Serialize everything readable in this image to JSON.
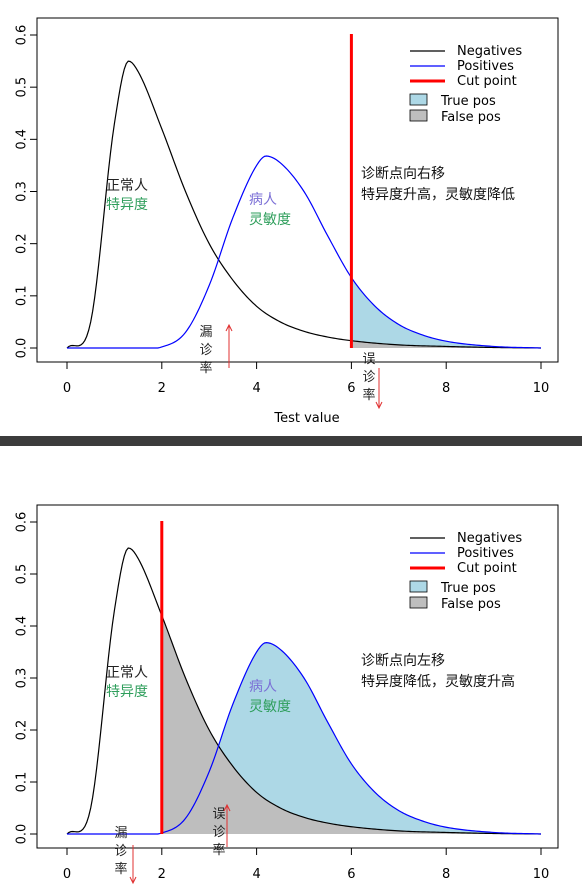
{
  "panels": [
    {
      "xlabel": "Test value",
      "legend": {
        "lines": [
          {
            "label": "Negatives",
            "color": "#000000"
          },
          {
            "label": "Positives",
            "color": "#0000ff"
          },
          {
            "label": "Cut point",
            "color": "#ff0000"
          }
        ],
        "fills": [
          {
            "label": "True pos",
            "color": "#add8e6"
          },
          {
            "label": "False pos",
            "color": "#bebebe"
          }
        ]
      },
      "annotations": {
        "normal": [
          "正常人",
          "特异度"
        ],
        "sick": [
          "病人",
          "灵敏度"
        ],
        "note": [
          "诊断点向右移",
          "特异度升高，灵敏度降低"
        ],
        "miss": [
          "漏",
          "诊",
          "率"
        ],
        "misdiag": [
          "误",
          "诊",
          "率"
        ]
      }
    },
    {
      "xlabel": "",
      "legend": {
        "lines": [
          {
            "label": "Negatives",
            "color": "#000000"
          },
          {
            "label": "Positives",
            "color": "#0000ff"
          },
          {
            "label": "Cut point",
            "color": "#ff0000"
          }
        ],
        "fills": [
          {
            "label": "True pos",
            "color": "#add8e6"
          },
          {
            "label": "False pos",
            "color": "#bebebe"
          }
        ]
      },
      "annotations": {
        "normal": [
          "正常人",
          "特异度"
        ],
        "sick": [
          "病人",
          "灵敏度"
        ],
        "note": [
          "诊断点向左移",
          "特异度降低，灵敏度升高"
        ],
        "miss": [
          "漏",
          "诊",
          "率"
        ],
        "misdiag": [
          "误",
          "诊",
          "率"
        ]
      }
    }
  ],
  "colors": {
    "negatives": "#000000",
    "positives": "#0000ff",
    "cut": "#ff0000",
    "true_pos_fill": "#add8e6",
    "false_pos_fill": "#bebebe",
    "green_text": "#2e9e5b",
    "purple_text": "#7b6fd6",
    "arrow": "#e03030"
  },
  "chart_data": [
    {
      "type": "area",
      "xlabel": "Test value",
      "ylabel": "",
      "xlim": [
        0,
        10
      ],
      "ylim": [
        0,
        0.6
      ],
      "xticks": [
        0,
        2,
        4,
        6,
        8,
        10
      ],
      "yticks": [
        0.0,
        0.1,
        0.2,
        0.3,
        0.4,
        0.5,
        0.6
      ],
      "cut_point": 6,
      "series": [
        {
          "name": "Negatives",
          "x": [
            0,
            0.5,
            1,
            1.3,
            1.5,
            2,
            2.5,
            3,
            3.5,
            4,
            4.5,
            5,
            5.5,
            6,
            7,
            8,
            9,
            10
          ],
          "values": [
            0,
            0.05,
            0.43,
            0.55,
            0.53,
            0.42,
            0.3,
            0.2,
            0.13,
            0.08,
            0.05,
            0.032,
            0.021,
            0.014,
            0.006,
            0.003,
            0.001,
            0
          ]
        },
        {
          "name": "Positives",
          "x": [
            0,
            1,
            2,
            2.5,
            3,
            3.5,
            4,
            4.2,
            4.5,
            5,
            5.5,
            6,
            6.5,
            7,
            7.5,
            8,
            9,
            10
          ],
          "values": [
            0,
            0,
            0.002,
            0.03,
            0.12,
            0.25,
            0.35,
            0.368,
            0.355,
            0.3,
            0.215,
            0.135,
            0.08,
            0.045,
            0.025,
            0.013,
            0.003,
            0
          ]
        }
      ],
      "shaded": {
        "true_pos": "x >= 6 under Positives",
        "false_pos": "x >= 6 under Negatives"
      },
      "legend": "top-right",
      "grid": false
    },
    {
      "type": "area",
      "xlabel": "",
      "ylabel": "",
      "xlim": [
        0,
        10
      ],
      "ylim": [
        0,
        0.6
      ],
      "xticks": [
        0,
        2,
        4,
        6,
        8,
        10
      ],
      "yticks": [
        0.0,
        0.1,
        0.2,
        0.3,
        0.4,
        0.5,
        0.6
      ],
      "cut_point": 2,
      "series": [
        {
          "name": "Negatives",
          "x": [
            0,
            0.5,
            1,
            1.3,
            1.5,
            2,
            2.5,
            3,
            3.5,
            4,
            4.5,
            5,
            5.5,
            6,
            7,
            8,
            9,
            10
          ],
          "values": [
            0,
            0.05,
            0.43,
            0.55,
            0.53,
            0.42,
            0.3,
            0.2,
            0.13,
            0.08,
            0.05,
            0.032,
            0.021,
            0.014,
            0.006,
            0.003,
            0.001,
            0
          ]
        },
        {
          "name": "Positives",
          "x": [
            0,
            1,
            2,
            2.5,
            3,
            3.5,
            4,
            4.2,
            4.5,
            5,
            5.5,
            6,
            6.5,
            7,
            7.5,
            8,
            9,
            10
          ],
          "values": [
            0,
            0,
            0.002,
            0.03,
            0.12,
            0.25,
            0.35,
            0.368,
            0.355,
            0.3,
            0.215,
            0.135,
            0.08,
            0.045,
            0.025,
            0.013,
            0.003,
            0
          ]
        }
      ],
      "shaded": {
        "true_pos": "x >= 2 under Positives",
        "false_pos": "x >= 2 under Negatives"
      },
      "legend": "top-right",
      "grid": false
    }
  ]
}
